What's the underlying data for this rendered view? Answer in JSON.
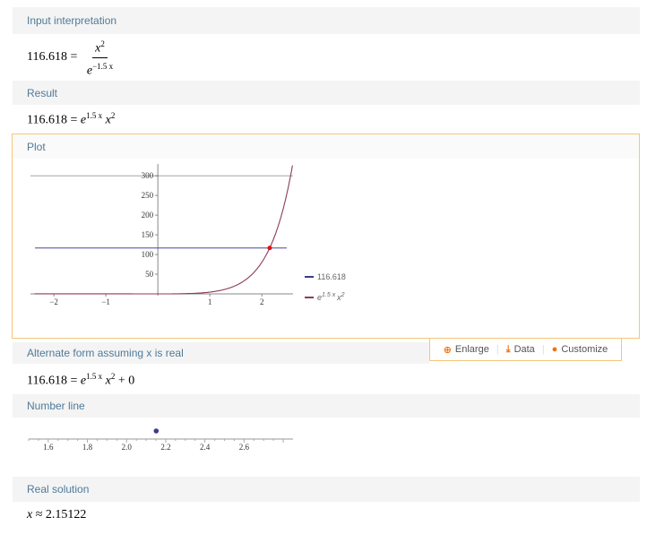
{
  "pods": {
    "input_interpretation": {
      "title": "Input interpretation",
      "lhs": "116.618 =",
      "num_base": "x",
      "num_exp": "2",
      "den_base": "e",
      "den_exp": "−1.5 x"
    },
    "result": {
      "title": "Result",
      "lhs": "116.618 =",
      "base": "e",
      "exp": "1.5 x",
      "var": "x",
      "var_exp": "2"
    },
    "plot": {
      "title": "Plot"
    },
    "alternate": {
      "title": "Alternate form assuming x is real",
      "lhs": "116.618 =",
      "base": "e",
      "exp": "1.5 x",
      "var": "x",
      "var_exp": "2",
      "tail": "+ 0"
    },
    "number_line": {
      "title": "Number line"
    },
    "real_solution": {
      "title": "Real solution",
      "text_var": "x",
      "text_rest": "≈ 2.15122"
    }
  },
  "tools": {
    "enlarge": "Enlarge",
    "data": "Data",
    "customize": "Customize",
    "enlarge_icon": "zoom-in-icon",
    "data_icon": "download-icon",
    "customize_icon": "palette-icon"
  },
  "chart_data": [
    {
      "type": "line",
      "x_ticks": [
        "−2",
        "−1",
        "1",
        "2"
      ],
      "y_ticks": [
        "50",
        "100",
        "150",
        "200",
        "250",
        "300"
      ],
      "xlim": [
        -2.45,
        2.6
      ],
      "ylim": [
        0,
        330
      ],
      "series": [
        {
          "name": "116.618",
          "color": "#3b3b8f",
          "constant": 116.618
        },
        {
          "name": "e^(1.5 x) x^2",
          "color": "#8c3a5e",
          "function": "exp(1.5x)*x^2"
        }
      ],
      "intersection": {
        "x": 2.15122,
        "y": 116.618,
        "color": "#e01010"
      },
      "legend_position": "right",
      "legend": [
        {
          "label": "116.618",
          "color": "#3b3b8f"
        },
        {
          "label_base": "e",
          "label_exp": "1.5 x",
          "label_var": "x",
          "label_var_exp": "2",
          "color": "#8c3a5e"
        }
      ]
    },
    {
      "type": "scatter",
      "x_ticks": [
        "1.6",
        "1.8",
        "2.0",
        "2.2",
        "2.4",
        "2.6"
      ],
      "xlim": [
        1.5,
        2.85
      ],
      "points": [
        2.15122
      ],
      "color": "#3b3b8f"
    }
  ]
}
